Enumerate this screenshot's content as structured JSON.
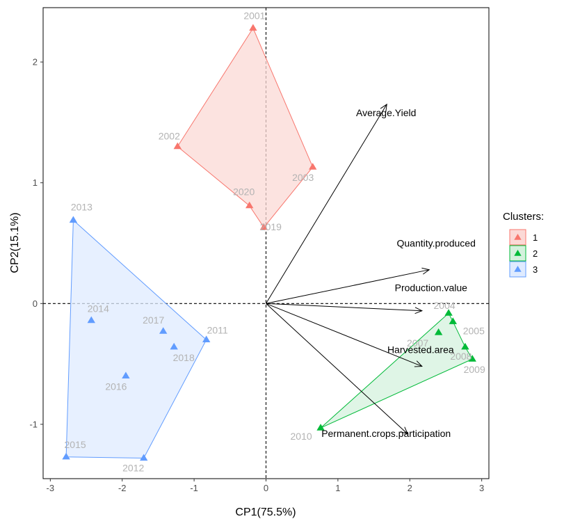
{
  "chart_data": {
    "type": "scatter",
    "xlabel": "CP1(75.5%)",
    "ylabel": "CP2(15.1%)",
    "xlim": [
      -3.1,
      3.1
    ],
    "ylim": [
      -1.45,
      2.45
    ],
    "x_ticks": [
      -3,
      -2,
      -1,
      0,
      1,
      2,
      3
    ],
    "y_ticks": [
      -1,
      0,
      1,
      2
    ],
    "grid": false,
    "reference_lines": {
      "x": 0,
      "y": 0
    },
    "legend": {
      "title": "Clusters:",
      "position": "right",
      "entries": [
        {
          "label": "1",
          "color": "#F8766D",
          "fill": "#FBD9D6"
        },
        {
          "label": "2",
          "color": "#00BA38",
          "fill": "#D4F1DD"
        },
        {
          "label": "3",
          "color": "#619CFF",
          "fill": "#DFEBFF"
        }
      ]
    },
    "points": [
      {
        "label": "2001",
        "cluster": "1",
        "x": -0.18,
        "y": 2.28
      },
      {
        "label": "2002",
        "cluster": "1",
        "x": -1.23,
        "y": 1.3
      },
      {
        "label": "2003",
        "cluster": "1",
        "x": 0.65,
        "y": 1.13
      },
      {
        "label": "2020",
        "cluster": "1",
        "x": -0.23,
        "y": 0.81
      },
      {
        "label": "2019",
        "cluster": "1",
        "x": -0.03,
        "y": 0.63
      },
      {
        "label": "2004",
        "cluster": "2",
        "x": 2.54,
        "y": -0.08
      },
      {
        "label": "2005",
        "cluster": "2",
        "x": 2.6,
        "y": -0.15
      },
      {
        "label": "2007",
        "cluster": "2",
        "x": 2.4,
        "y": -0.24
      },
      {
        "label": "2008",
        "cluster": "2",
        "x": 2.77,
        "y": -0.36
      },
      {
        "label": "2009",
        "cluster": "2",
        "x": 2.87,
        "y": -0.46
      },
      {
        "label": "2010",
        "cluster": "2",
        "x": 0.76,
        "y": -1.03
      },
      {
        "label": "2013",
        "cluster": "3",
        "x": -2.68,
        "y": 0.69
      },
      {
        "label": "2014",
        "cluster": "3",
        "x": -2.43,
        "y": -0.14
      },
      {
        "label": "2017",
        "cluster": "3",
        "x": -1.43,
        "y": -0.23
      },
      {
        "label": "2011",
        "cluster": "3",
        "x": -0.83,
        "y": -0.3
      },
      {
        "label": "2018",
        "cluster": "3",
        "x": -1.28,
        "y": -0.36
      },
      {
        "label": "2016",
        "cluster": "3",
        "x": -1.95,
        "y": -0.6
      },
      {
        "label": "2015",
        "cluster": "3",
        "x": -2.78,
        "y": -1.27
      },
      {
        "label": "2012",
        "cluster": "3",
        "x": -1.7,
        "y": -1.28
      }
    ],
    "hulls": [
      {
        "cluster": "1",
        "order": [
          "2001",
          "2003",
          "2019",
          "2020",
          "2002"
        ]
      },
      {
        "cluster": "2",
        "order": [
          "2004",
          "2005",
          "2008",
          "2009",
          "2010"
        ]
      },
      {
        "cluster": "3",
        "order": [
          "2013",
          "2011",
          "2012",
          "2015"
        ]
      }
    ],
    "variables": [
      {
        "label": "Average.Yield",
        "x": 1.68,
        "y": 1.65
      },
      {
        "label": "Quantity.produced",
        "x": 2.27,
        "y": 0.28
      },
      {
        "label": "Production.value",
        "x": 2.17,
        "y": -0.06
      },
      {
        "label": "Harvested.area",
        "x": 2.17,
        "y": -0.52
      },
      {
        "label": "Permanent.crops.participation",
        "x": 1.97,
        "y": -1.08
      }
    ]
  }
}
